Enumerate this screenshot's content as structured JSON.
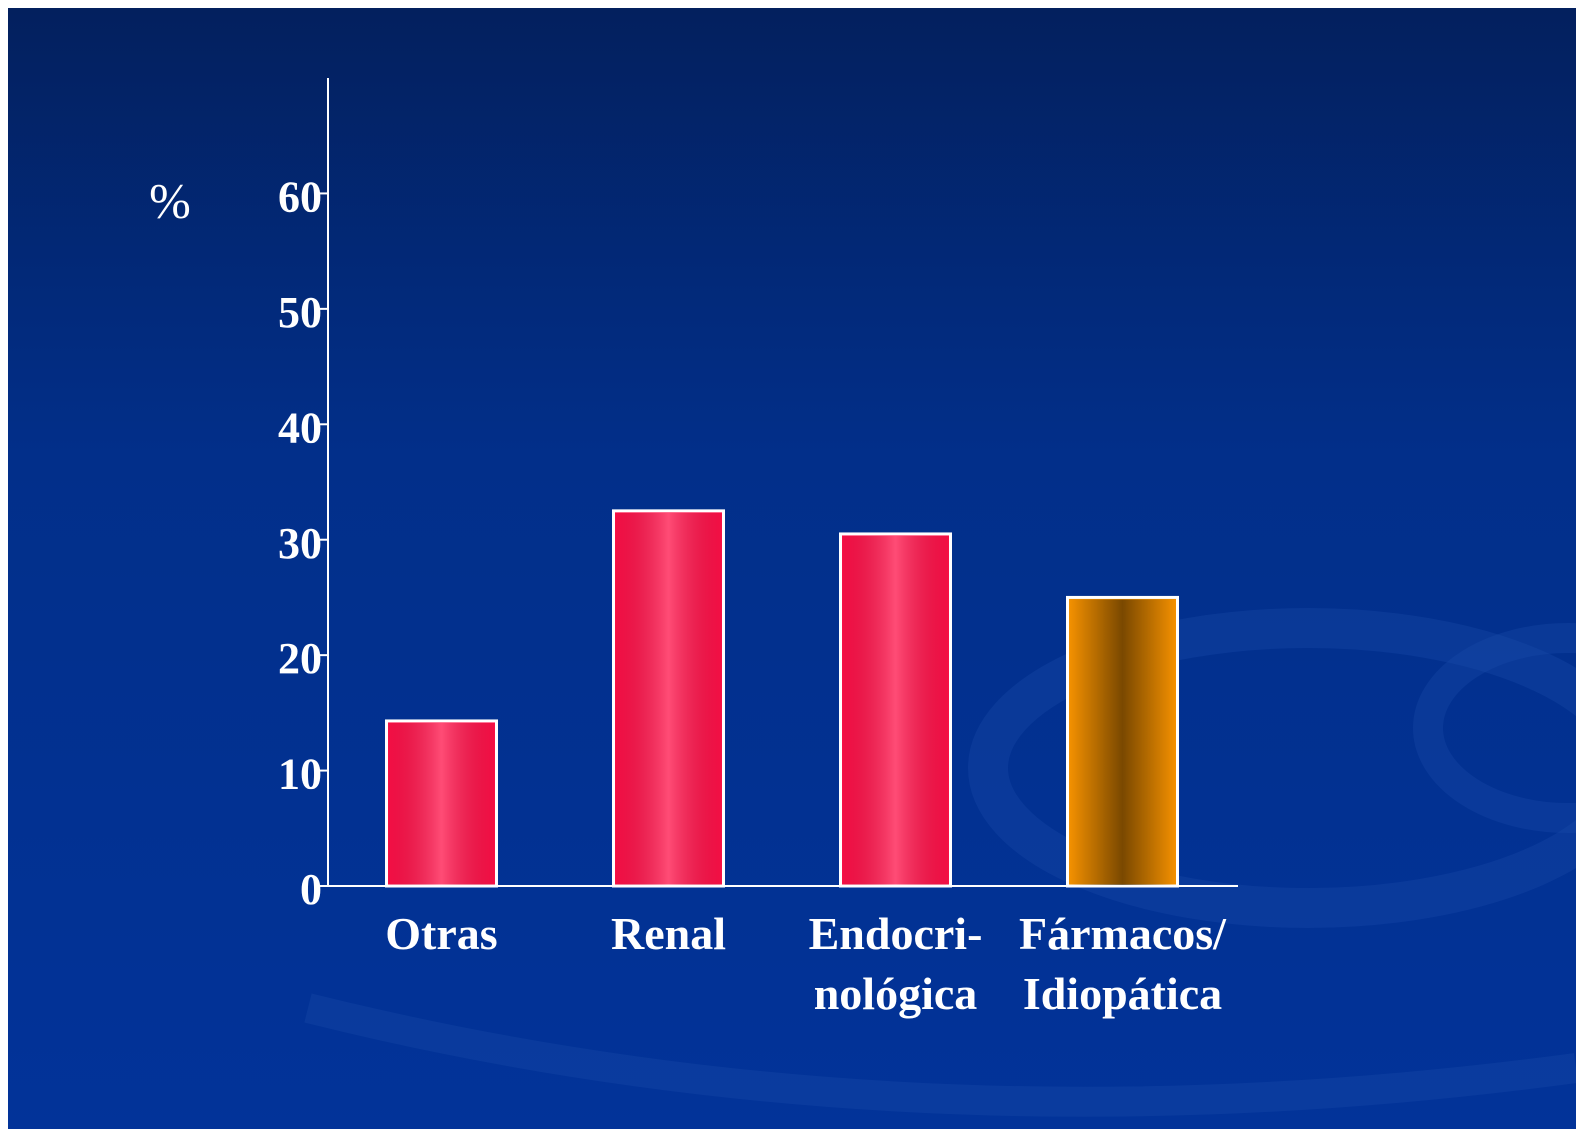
{
  "chart_data": {
    "type": "bar",
    "y_label": "%",
    "categories": [
      "Otras",
      "Renal",
      "Endocri-\nnológica",
      "Fármacos/\nIdiopática"
    ],
    "values": [
      14.3,
      32.5,
      30.5,
      25
    ],
    "colors": [
      "#ff1048",
      "#ff1048",
      "#ff1048",
      "#f39000"
    ],
    "ylim": [
      0,
      70
    ],
    "yticks": [
      0,
      10,
      20,
      30,
      40,
      50,
      60
    ]
  }
}
